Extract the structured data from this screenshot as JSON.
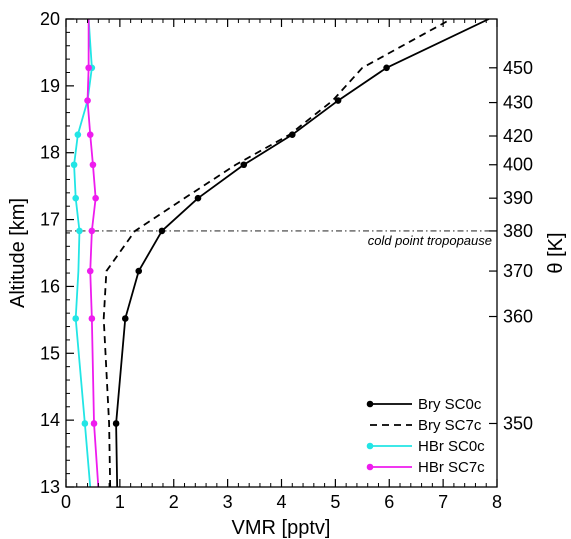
{
  "chart_data": {
    "type": "line",
    "xlabel": "VMR [pptv]",
    "ylabel": "Altitude [km]",
    "y2label": "θ [K]",
    "xlim": [
      0,
      8
    ],
    "ylim": [
      13,
      20
    ],
    "x_ticks": [
      0,
      1,
      2,
      3,
      4,
      5,
      6,
      7,
      8
    ],
    "y_ticks": [
      13,
      14,
      15,
      16,
      17,
      18,
      19,
      20
    ],
    "y2_ticks": [
      {
        "label": "350",
        "altitude": 13.95
      },
      {
        "label": "360",
        "altitude": 15.55
      },
      {
        "label": "370",
        "altitude": 16.23
      },
      {
        "label": "380",
        "altitude": 16.83
      },
      {
        "label": "390",
        "altitude": 17.32
      },
      {
        "label": "400",
        "altitude": 17.82
      },
      {
        "label": "420",
        "altitude": 18.25
      },
      {
        "label": "430",
        "altitude": 18.75
      },
      {
        "label": "450",
        "altitude": 19.27
      }
    ],
    "hline": {
      "altitude": 16.83,
      "label": "cold point tropopause"
    },
    "legend_position": "bottom-right",
    "series": [
      {
        "name": "Bry SC0c",
        "color": "#000000",
        "dash": "solid",
        "markers": true,
        "points": [
          [
            0.95,
            13.0
          ],
          [
            0.93,
            13.95
          ],
          [
            1.1,
            15.52
          ],
          [
            1.35,
            16.23
          ],
          [
            1.78,
            16.83
          ],
          [
            2.45,
            17.32
          ],
          [
            3.3,
            17.82
          ],
          [
            4.2,
            18.27
          ],
          [
            5.05,
            18.78
          ],
          [
            5.95,
            19.27
          ],
          [
            7.85,
            20.0
          ]
        ],
        "marker_points": [
          [
            0.93,
            13.95
          ],
          [
            1.1,
            15.52
          ],
          [
            1.35,
            16.23
          ],
          [
            1.78,
            16.83
          ],
          [
            2.45,
            17.32
          ],
          [
            3.3,
            17.82
          ],
          [
            4.2,
            18.27
          ],
          [
            5.05,
            18.78
          ],
          [
            5.95,
            19.27
          ]
        ]
      },
      {
        "name": "Bry SC7c",
        "color": "#000000",
        "dash": "dashed",
        "markers": false,
        "points": [
          [
            0.82,
            13.0
          ],
          [
            0.8,
            13.95
          ],
          [
            0.7,
            15.52
          ],
          [
            0.75,
            16.23
          ],
          [
            1.28,
            16.83
          ],
          [
            2.2,
            17.32
          ],
          [
            3.15,
            17.82
          ],
          [
            4.15,
            18.27
          ],
          [
            4.95,
            18.78
          ],
          [
            5.5,
            19.27
          ],
          [
            7.15,
            20.0
          ]
        ]
      },
      {
        "name": "HBr SC0c",
        "color": "#22e5e5",
        "dash": "solid",
        "markers": true,
        "points": [
          [
            0.45,
            13.0
          ],
          [
            0.35,
            13.95
          ],
          [
            0.18,
            15.52
          ],
          [
            0.23,
            16.23
          ],
          [
            0.25,
            16.83
          ],
          [
            0.18,
            17.32
          ],
          [
            0.15,
            17.82
          ],
          [
            0.22,
            18.27
          ],
          [
            0.4,
            18.78
          ],
          [
            0.48,
            19.27
          ],
          [
            0.42,
            20.0
          ]
        ],
        "marker_points": [
          [
            0.35,
            13.95
          ],
          [
            0.18,
            15.52
          ],
          [
            0.25,
            16.83
          ],
          [
            0.18,
            17.32
          ],
          [
            0.15,
            17.82
          ],
          [
            0.22,
            18.27
          ],
          [
            0.48,
            19.27
          ]
        ]
      },
      {
        "name": "HBr SC7c",
        "color": "#ee1cee",
        "dash": "solid",
        "markers": true,
        "points": [
          [
            0.6,
            13.0
          ],
          [
            0.52,
            13.95
          ],
          [
            0.48,
            15.52
          ],
          [
            0.45,
            16.23
          ],
          [
            0.48,
            16.83
          ],
          [
            0.55,
            17.32
          ],
          [
            0.5,
            17.82
          ],
          [
            0.45,
            18.27
          ],
          [
            0.4,
            18.78
          ],
          [
            0.42,
            19.27
          ],
          [
            0.42,
            20.0
          ]
        ],
        "marker_points": [
          [
            0.52,
            13.95
          ],
          [
            0.48,
            15.52
          ],
          [
            0.45,
            16.23
          ],
          [
            0.48,
            16.83
          ],
          [
            0.55,
            17.32
          ],
          [
            0.5,
            17.82
          ],
          [
            0.45,
            18.27
          ],
          [
            0.4,
            18.78
          ],
          [
            0.42,
            19.27
          ]
        ]
      }
    ]
  }
}
